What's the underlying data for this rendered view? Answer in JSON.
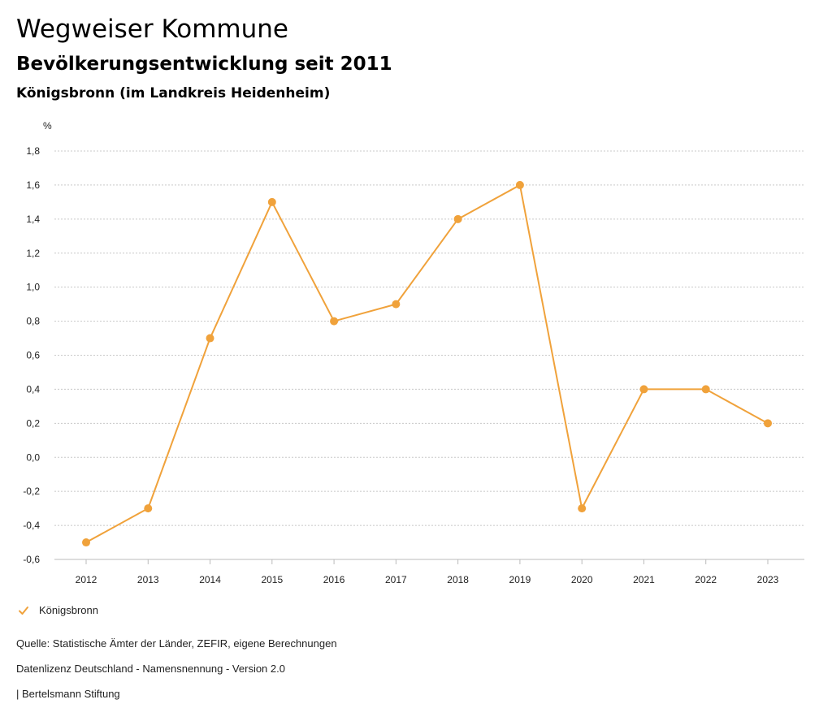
{
  "header": {
    "title": "Wegweiser Kommune",
    "subtitle": "Bevölkerungsentwicklung seit 2011",
    "region": "Königsbronn (im Landkreis Heidenheim)"
  },
  "chart_data": {
    "type": "line",
    "x": [
      "2012",
      "2013",
      "2014",
      "2015",
      "2016",
      "2017",
      "2018",
      "2019",
      "2020",
      "2021",
      "2022",
      "2023"
    ],
    "series": [
      {
        "name": "Königsbronn",
        "color": "#F0A23B",
        "values": [
          -0.5,
          -0.3,
          0.7,
          1.5,
          0.8,
          0.9,
          1.4,
          1.6,
          -0.3,
          0.4,
          0.4,
          0.2
        ]
      }
    ],
    "ylabel": "%",
    "ylim": [
      -0.6,
      1.8
    ],
    "yticks": [
      "1,8",
      "1,6",
      "1,4",
      "1,2",
      "1,0",
      "0,8",
      "0,6",
      "0,4",
      "0,2",
      "0,0",
      "-0,2",
      "-0,4",
      "-0,6"
    ],
    "grid": true,
    "legend_position": "bottom-left"
  },
  "legend": {
    "label": "Königsbronn",
    "icon": "checkmark-icon"
  },
  "footer": {
    "source": "Quelle: Statistische Ämter der Länder, ZEFIR, eigene Berechnungen",
    "license": "Datenlizenz Deutschland - Namensnennung - Version 2.0",
    "publisher": "| Bertelsmann Stiftung"
  }
}
